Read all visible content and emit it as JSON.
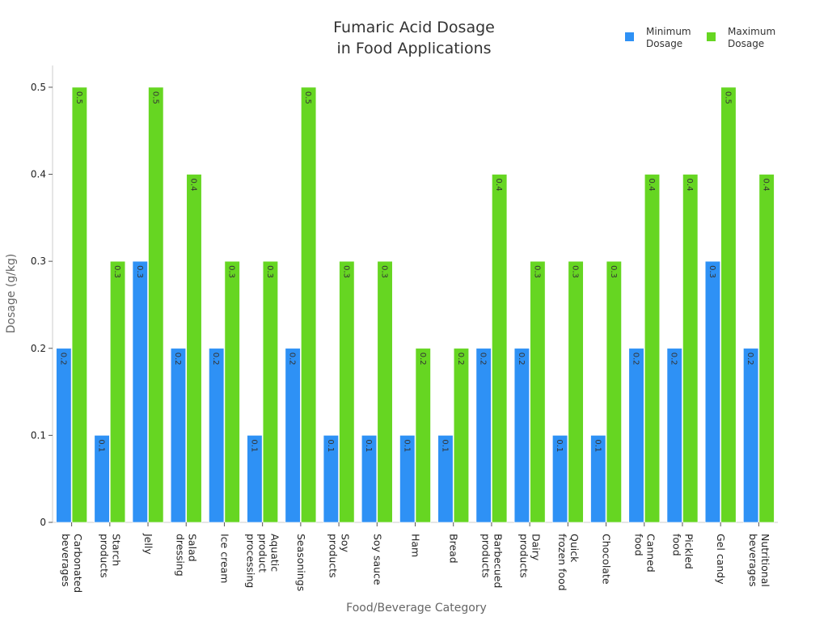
{
  "chart_data": {
    "type": "bar",
    "title": "Fumaric Acid Dosage\nin Food Applications",
    "xlabel": "Food/Beverage Category",
    "ylabel": "Dosage (g/kg)",
    "ylim": [
      0,
      0.525
    ],
    "yticks": [
      0,
      0.1,
      0.2,
      0.3,
      0.4,
      0.5
    ],
    "ytick_labels": [
      "0",
      "0.1",
      "0.2",
      "0.3",
      "0.4",
      "0.5"
    ],
    "grid": false,
    "legend_position": "top-right",
    "categories": [
      "Carbonated\nbeverages",
      "Starch\nproducts",
      "Jelly",
      "Salad\ndressing",
      "Ice cream",
      "Aquatic\nproduct\nprocessing",
      "Seasonings",
      "Soy\nproducts",
      "Soy sauce",
      "Ham",
      "Bread",
      "Barbecued\nproducts",
      "Dairy\nproducts",
      "Quick\nfrozen food",
      "Chocolate",
      "Canned\nfood",
      "Pickled\nfood",
      "Gel candy",
      "Nutritional\nbeverages"
    ],
    "series": [
      {
        "name": "Minimum\nDosage",
        "color": "#2e91f5",
        "values": [
          0.2,
          0.1,
          0.3,
          0.2,
          0.2,
          0.1,
          0.2,
          0.1,
          0.1,
          0.1,
          0.1,
          0.2,
          0.2,
          0.1,
          0.1,
          0.2,
          0.2,
          0.3,
          0.2
        ]
      },
      {
        "name": "Maximum\nDosage",
        "color": "#66d622",
        "values": [
          0.5,
          0.3,
          0.5,
          0.4,
          0.3,
          0.3,
          0.5,
          0.3,
          0.3,
          0.2,
          0.2,
          0.4,
          0.3,
          0.3,
          0.3,
          0.4,
          0.4,
          0.5,
          0.4
        ]
      }
    ]
  }
}
